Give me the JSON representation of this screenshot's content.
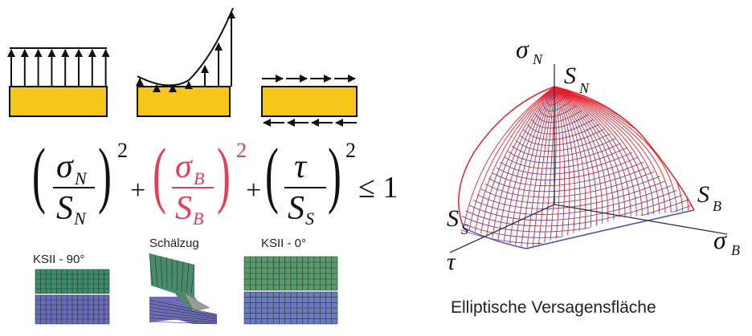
{
  "load_cases": [
    {
      "name": "uniform-normal-load"
    },
    {
      "name": "bending-load"
    },
    {
      "name": "shear-load"
    }
  ],
  "formula": {
    "term1": {
      "num": "σ",
      "num_sub": "N",
      "den": "S",
      "den_sub": "N",
      "exp": "2"
    },
    "term2": {
      "num": "σ",
      "num_sub": "B",
      "den": "S",
      "den_sub": "B",
      "exp": "2"
    },
    "term3": {
      "num": "τ",
      "num_sub": "",
      "den": "S",
      "den_sub": "S",
      "exp": "2"
    },
    "plus": "+",
    "relation": "≤ 1"
  },
  "specimens": [
    {
      "label": "KSII - 90°"
    },
    {
      "label": "Schälzug"
    },
    {
      "label": "KSII - 0°"
    }
  ],
  "surface_plot": {
    "axis_sigma_n": "σ",
    "axis_sigma_n_sub": "N",
    "axis_sigma_b": "σ",
    "axis_sigma_b_sub": "B",
    "axis_tau": "τ",
    "label_sn": "S",
    "label_sn_sub": "N",
    "label_sb": "S",
    "label_sb_sub": "B",
    "label_ss": "S",
    "label_ss_sub": "S",
    "caption": "Elliptische Versagensfläche",
    "colors": {
      "surface_red": "#e8202a",
      "surface_blue": "#5a4aa8"
    }
  },
  "colors": {
    "plate": "#f5c518",
    "term2": "#e0405a",
    "text": "#111111"
  }
}
